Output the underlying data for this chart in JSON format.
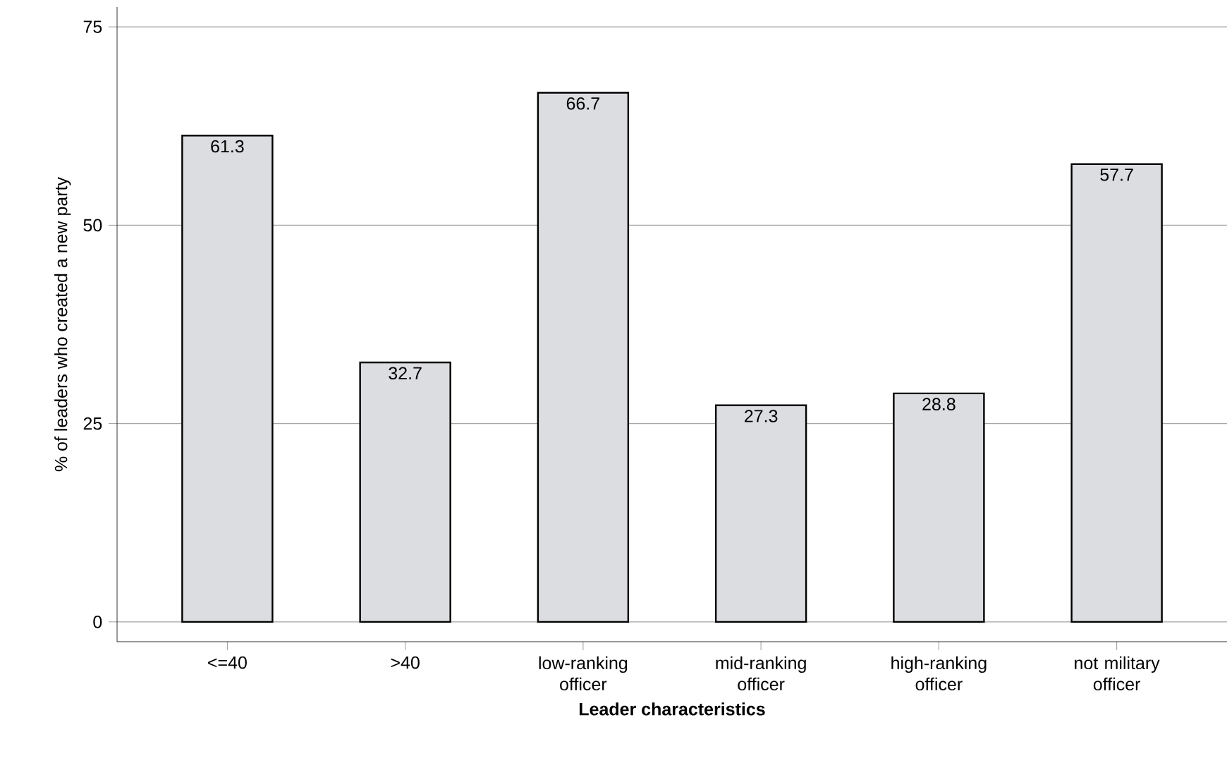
{
  "chart_data": {
    "type": "bar",
    "xlabel": "Leader characteristics",
    "ylabel": "% of leaders who created a new party",
    "categories": [
      "<=40",
      ">40",
      "low-ranking officer",
      "mid-ranking officer",
      "high-ranking officer",
      "not military officer"
    ],
    "values": [
      61.3,
      32.7,
      66.7,
      27.3,
      28.8,
      57.7
    ],
    "color": "#dcdde0",
    "data_labels": true,
    "ylim": [
      -2.5,
      77.5
    ],
    "yticks": [
      0,
      25,
      50,
      75
    ],
    "grid": "y"
  }
}
